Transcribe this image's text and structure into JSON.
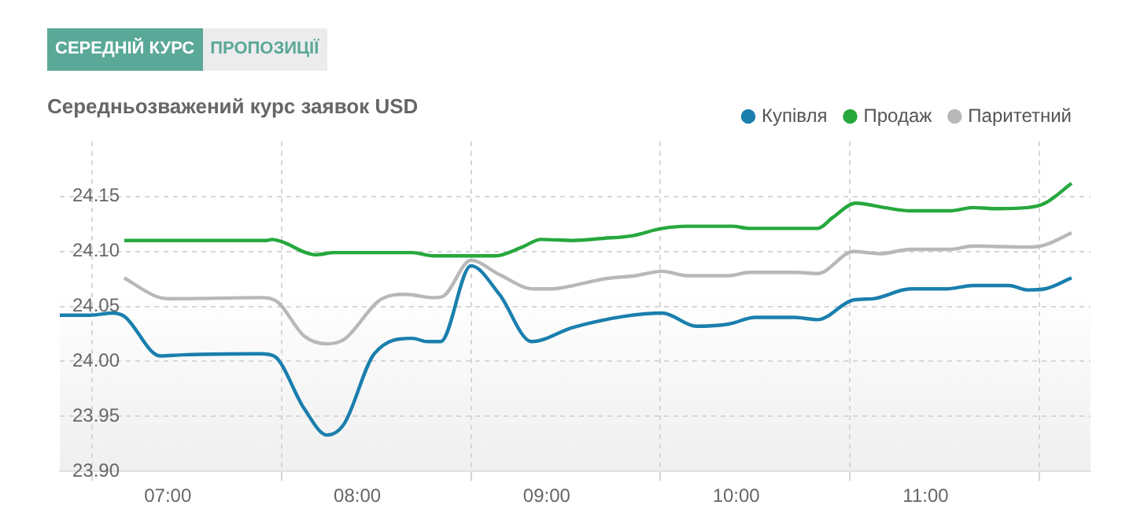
{
  "chart_data": {
    "type": "line",
    "title": "Середньозважений курс заявок USD",
    "annotations": [
      "СЕРЕДНІЙ КУРС",
      "ПРОПОЗИЦІЇ"
    ],
    "xlim": [
      6.43,
      11.87
    ],
    "ylim": [
      23.9,
      24.2
    ],
    "xticks": [
      {
        "value": 6.6,
        "label": null
      },
      {
        "value": 7,
        "label": "07:00"
      },
      {
        "value": 7.6,
        "label": null
      },
      {
        "value": 8,
        "label": "08:00"
      },
      {
        "value": 8.6,
        "label": null
      },
      {
        "value": 9,
        "label": "09:00"
      },
      {
        "value": 9.6,
        "label": null
      },
      {
        "value": 10,
        "label": "10:00"
      },
      {
        "value": 10.6,
        "label": null
      },
      {
        "value": 11,
        "label": "11:00"
      },
      {
        "value": 11.6,
        "label": null
      }
    ],
    "yticks": [
      {
        "value": 23.9,
        "label": "23.90"
      },
      23.95,
      {
        "value": 24,
        "label": "24.00"
      },
      24.05,
      {
        "value": 24.1,
        "label": "24.10"
      },
      24.15
    ],
    "grid": true,
    "legend": "top right",
    "marker": "none",
    "line_style": "solid",
    "series": [
      {
        "name": "Купівля",
        "color": "#1a7fad",
        "x": [
          6.43,
          6.59,
          6.71,
          6.77,
          6.96,
          7.08,
          7.49,
          7.56,
          7.72,
          7.84,
          7.93,
          8.09,
          8.29,
          8.37,
          8.44,
          8.6,
          8.75,
          8.92,
          9.14,
          9.41,
          9.61,
          9.79,
          9.96,
          10.1,
          10.31,
          10.43,
          10.62,
          10.72,
          10.92,
          11.11,
          11.25,
          11.44,
          11.54,
          11.63,
          11.77
        ],
        "values": [
          24.042,
          24.042,
          24.044,
          24.041,
          24.005,
          24.006,
          24.007,
          24.005,
          23.957,
          23.933,
          23.943,
          24.007,
          24.021,
          24.018,
          24.018,
          24.087,
          24.061,
          24.018,
          24.031,
          24.041,
          24.044,
          24.032,
          24.034,
          24.04,
          24.04,
          24.038,
          24.056,
          24.057,
          24.066,
          24.066,
          24.069,
          24.069,
          24.065,
          24.066,
          24.076
        ]
      },
      {
        "name": "Продаж",
        "color": "#26a83d",
        "x": [
          6.77,
          7.52,
          7.55,
          7.6,
          7.78,
          7.88,
          8.29,
          8.4,
          8.73,
          8.87,
          8.97,
          9.14,
          9.3,
          9.44,
          9.61,
          9.74,
          9.98,
          10.07,
          10.43,
          10.51,
          10.63,
          10.78,
          10.92,
          11.13,
          11.25,
          11.36,
          11.54,
          11.63,
          11.77
        ],
        "values": [
          24.11,
          24.11,
          24.111,
          24.109,
          24.097,
          24.099,
          24.099,
          24.096,
          24.096,
          24.104,
          24.111,
          24.11,
          24.112,
          24.114,
          24.121,
          24.123,
          24.123,
          24.121,
          24.121,
          24.131,
          24.144,
          24.14,
          24.137,
          24.137,
          24.14,
          24.139,
          24.14,
          24.144,
          24.162
        ]
      },
      {
        "name": "Паритетний",
        "color": "#b8b8b8",
        "x": [
          6.77,
          6.94,
          7.0,
          7.49,
          7.58,
          7.72,
          7.84,
          7.93,
          8.13,
          8.26,
          8.4,
          8.45,
          8.6,
          8.75,
          8.93,
          9.03,
          9.14,
          9.3,
          9.47,
          9.61,
          9.74,
          9.96,
          10.07,
          10.31,
          10.43,
          10.62,
          10.76,
          10.92,
          11.13,
          11.25,
          11.54,
          11.63,
          11.77
        ],
        "values": [
          24.076,
          24.059,
          24.057,
          24.058,
          24.054,
          24.023,
          24.016,
          24.02,
          24.057,
          24.061,
          24.058,
          24.059,
          24.092,
          24.079,
          24.066,
          24.066,
          24.069,
          24.075,
          24.078,
          24.082,
          24.078,
          24.078,
          24.081,
          24.081,
          24.08,
          24.1,
          24.098,
          24.102,
          24.102,
          24.105,
          24.104,
          24.106,
          24.117
        ]
      }
    ]
  }
}
